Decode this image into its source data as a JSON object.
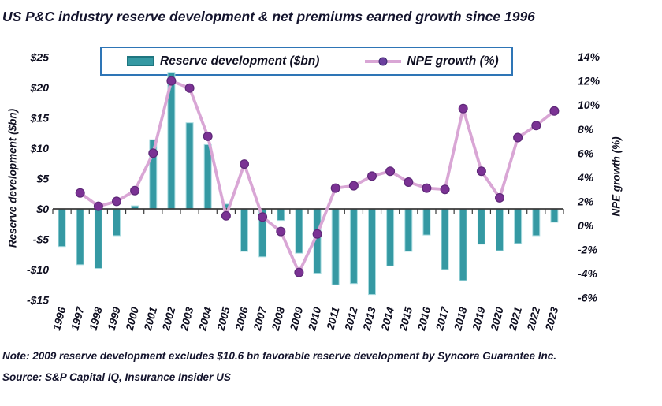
{
  "title": "US P&C industry reserve development & net premiums earned growth since 1996",
  "note": "Note: 2009 reserve development excludes $10.6 bn favorable reserve development by Syncora Guarantee Inc.",
  "source": "Source: S&P Capital IQ, Insurance Insider US",
  "legend": {
    "items": [
      {
        "label": "Reserve development ($bn)",
        "type": "bar"
      },
      {
        "label": "NPE growth (%)",
        "type": "line"
      }
    ]
  },
  "colors": {
    "bar_fill": "#3599A3",
    "bar_edge": "#AADCE0",
    "line": "#D9A6D5",
    "marker_fill": "#7B3294",
    "marker_edge": "#5E2878",
    "legend_border": "#2E75B6",
    "axis": "#3A3A3A",
    "text": "#14142d"
  },
  "chart_data": {
    "type": "bar",
    "subtype": "bar+line combo, dual axis",
    "title": "US P&C industry reserve development & net premiums earned growth since 1996",
    "categories": [
      "1996",
      "1997",
      "1998",
      "1999",
      "2000",
      "2001",
      "2002",
      "2003",
      "2004",
      "2005",
      "2006",
      "2007",
      "2008",
      "2009",
      "2010",
      "2011",
      "2012",
      "2013",
      "2014",
      "2015",
      "2016",
      "2017",
      "2018",
      "2019",
      "2020",
      "2021",
      "2022",
      "2023"
    ],
    "series": [
      {
        "name": "Reserve development ($bn)",
        "type": "bar",
        "axis": "left",
        "values": [
          -6.2,
          -9.2,
          -9.8,
          -4.4,
          0.5,
          11.4,
          22.5,
          14.2,
          10.6,
          0.8,
          -7.0,
          -7.9,
          -1.9,
          -7.3,
          -10.6,
          -12.5,
          -12.3,
          -14.1,
          -9.4,
          -7.0,
          -4.3,
          -10.0,
          -11.8,
          -5.8,
          -6.9,
          -5.7,
          -4.4,
          -2.2
        ]
      },
      {
        "name": "NPE growth (%)",
        "type": "line",
        "axis": "right",
        "values": [
          null,
          2.7,
          1.6,
          2.0,
          2.9,
          6.0,
          12.0,
          11.4,
          7.4,
          0.8,
          5.1,
          0.7,
          -0.5,
          -3.9,
          -0.7,
          3.1,
          3.3,
          4.1,
          4.5,
          3.6,
          3.1,
          3.0,
          9.7,
          4.5,
          2.3,
          7.3,
          8.3,
          9.5
        ]
      }
    ],
    "left_axis": {
      "label": "Reserve development ($bn)",
      "min": -15,
      "max": 25,
      "ticks": [
        {
          "v": 25,
          "label": "$25"
        },
        {
          "v": 20,
          "label": "$20"
        },
        {
          "v": 15,
          "label": "$15"
        },
        {
          "v": 10,
          "label": "$10"
        },
        {
          "v": 5,
          "label": "$5"
        },
        {
          "v": 0,
          "label": "$0"
        },
        {
          "v": -5,
          "label": "-$5"
        },
        {
          "v": -10,
          "label": "-$10"
        },
        {
          "v": -15,
          "label": "-$15"
        }
      ]
    },
    "right_axis": {
      "label": "NPE growth (%)",
      "min": -6,
      "max": 14,
      "ticks": [
        {
          "v": 14,
          "label": "14%"
        },
        {
          "v": 12,
          "label": "12%"
        },
        {
          "v": 10,
          "label": "10%"
        },
        {
          "v": 8,
          "label": "8%"
        },
        {
          "v": 6,
          "label": "6%"
        },
        {
          "v": 4,
          "label": "4%"
        },
        {
          "v": 2,
          "label": "2%"
        },
        {
          "v": 0,
          "label": "0%"
        },
        {
          "v": -2,
          "label": "-2%"
        },
        {
          "v": -4,
          "label": "-4%"
        },
        {
          "v": -6,
          "label": "-6%"
        }
      ]
    },
    "grid": false,
    "legend_position": "top"
  }
}
